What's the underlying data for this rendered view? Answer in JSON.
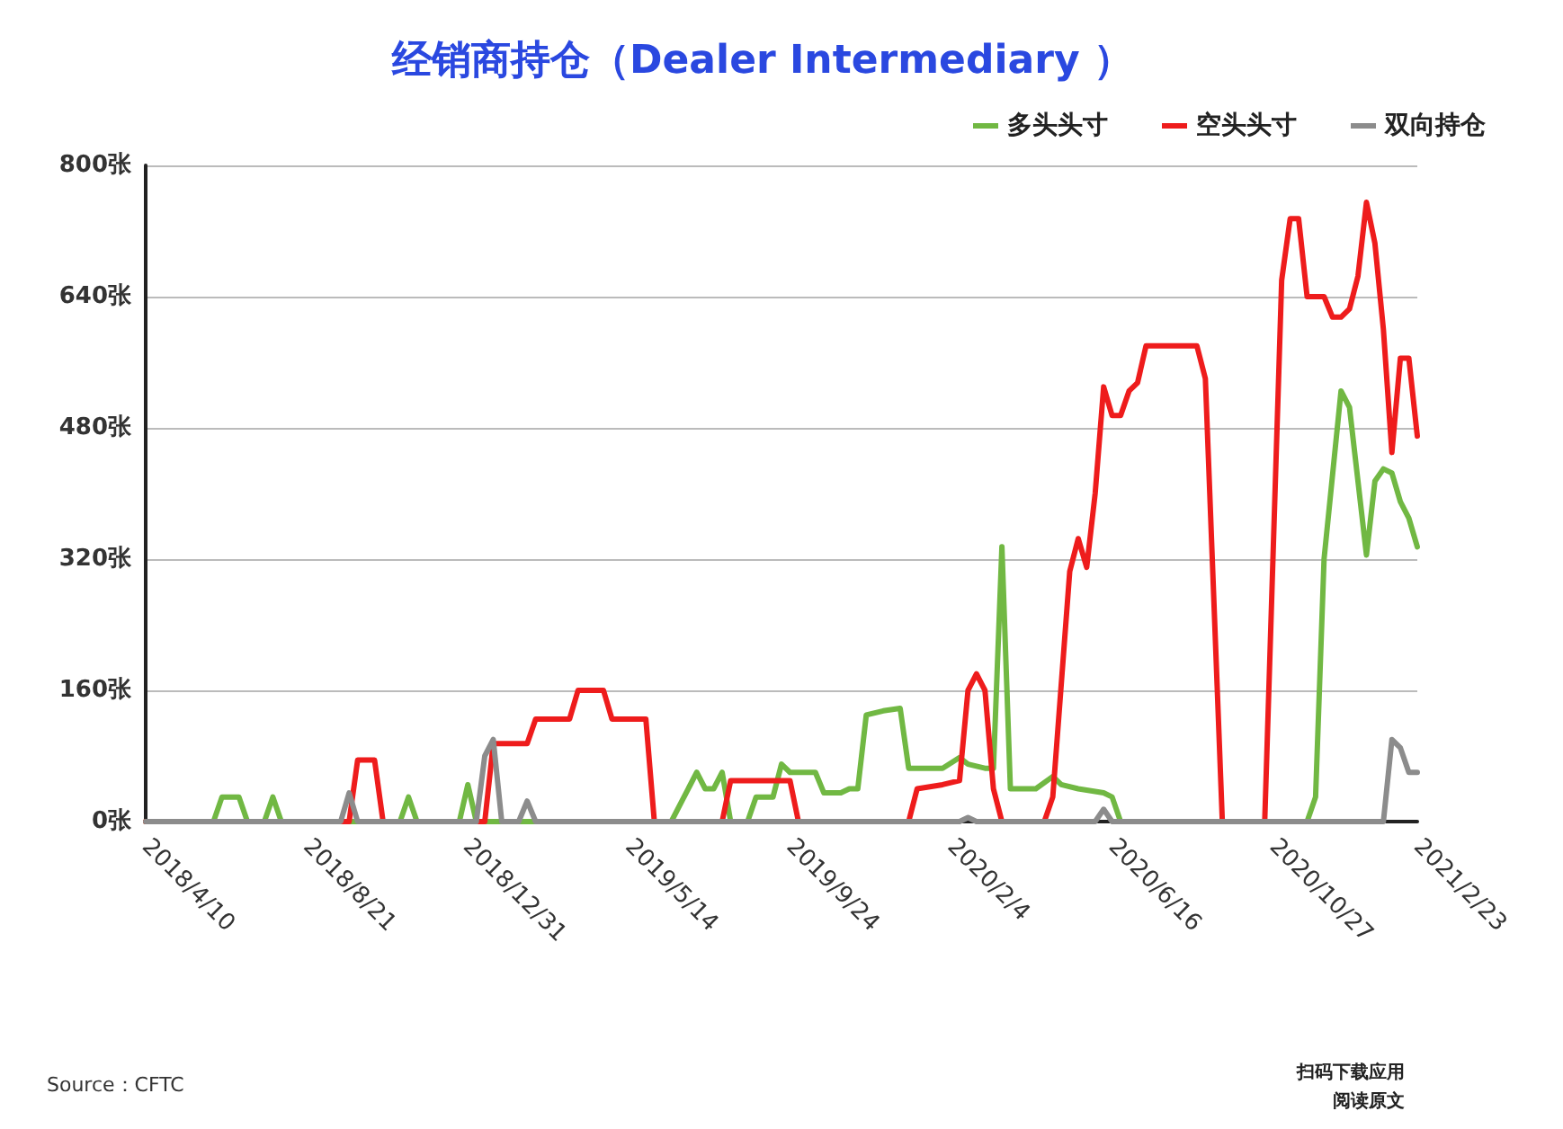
{
  "chart_data": {
    "type": "line",
    "title": "经销商持仓（Dealer Intermediary ）",
    "annotations": [
      "Source：CFTC",
      "扫码下载应用",
      "阅读原文"
    ],
    "xlim": [
      "2018-04-10",
      "2021-02-23"
    ],
    "xticks": [
      {
        "value": "2018-04-10",
        "label": "2018/4/10"
      },
      {
        "value": "2018-08-21",
        "label": "2018/8/21"
      },
      {
        "value": "2018-12-31",
        "label": "2018/12/31"
      },
      {
        "value": "2019-05-14",
        "label": "2019/5/14"
      },
      {
        "value": "2019-09-24",
        "label": "2019/9/24"
      },
      {
        "value": "2020-02-04",
        "label": "2020/2/4"
      },
      {
        "value": "2020-06-16",
        "label": "2020/6/16"
      },
      {
        "value": "2020-10-27",
        "label": "2020/10/27"
      },
      {
        "value": "2021-02-23",
        "label": "2021/2/23"
      }
    ],
    "ylim": [
      0,
      800
    ],
    "yticks": [
      {
        "value": 0,
        "label": "0张"
      },
      {
        "value": 160,
        "label": "160张"
      },
      {
        "value": 320,
        "label": "320张"
      },
      {
        "value": 480,
        "label": "480张"
      },
      {
        "value": 640,
        "label": "640张"
      },
      {
        "value": 800,
        "label": "800张"
      }
    ],
    "grid": "y",
    "legend": "top right",
    "marker": "none",
    "line_style": "solid",
    "series": [
      {
        "name": "多头头寸",
        "color": "#71b843",
        "x": [
          "2018-04-10",
          "2018-06-05",
          "2018-06-12",
          "2018-06-26",
          "2018-07-03",
          "2018-07-17",
          "2018-07-24",
          "2018-07-31",
          "2018-11-06",
          "2018-11-13",
          "2018-11-20",
          "2018-12-25",
          "2019-01-01",
          "2019-01-08",
          "2019-06-18",
          "2019-07-09",
          "2019-07-16",
          "2019-07-23",
          "2019-07-30",
          "2019-08-06",
          "2019-08-20",
          "2019-08-27",
          "2019-09-10",
          "2019-09-17",
          "2019-09-24",
          "2019-10-15",
          "2019-10-22",
          "2019-11-05",
          "2019-11-12",
          "2019-11-19",
          "2019-11-26",
          "2019-12-10",
          "2019-12-24",
          "2019-12-31",
          "2020-01-28",
          "2020-02-11",
          "2020-02-18",
          "2020-03-03",
          "2020-03-10",
          "2020-03-17",
          "2020-03-24",
          "2020-04-14",
          "2020-04-28",
          "2020-05-05",
          "2020-05-19",
          "2020-06-09",
          "2020-06-16",
          "2020-06-23",
          "2020-11-24",
          "2020-12-01",
          "2020-12-08",
          "2020-12-22",
          "2020-12-29",
          "2021-01-12",
          "2021-01-19",
          "2021-01-26",
          "2021-02-02",
          "2021-02-09",
          "2021-02-16",
          "2021-02-23"
        ],
        "values": [
          0,
          0,
          30,
          30,
          0,
          0,
          30,
          0,
          0,
          30,
          0,
          0,
          45,
          0,
          0,
          60,
          40,
          40,
          60,
          0,
          0,
          30,
          30,
          70,
          60,
          60,
          35,
          35,
          40,
          40,
          130,
          135,
          138,
          65,
          65,
          78,
          70,
          65,
          65,
          335,
          40,
          40,
          55,
          45,
          40,
          35,
          30,
          0,
          0,
          30,
          320,
          525,
          505,
          325,
          415,
          430,
          425,
          390,
          370,
          335
        ]
      },
      {
        "name": "空头头寸",
        "color": "#ee1c1c",
        "x": [
          "2018-04-10",
          "2018-09-25",
          "2018-10-02",
          "2018-10-16",
          "2018-10-23",
          "2019-01-15",
          "2019-01-22",
          "2019-02-19",
          "2019-02-26",
          "2019-03-26",
          "2019-04-02",
          "2019-04-23",
          "2019-04-30",
          "2019-05-28",
          "2019-06-04",
          "2019-07-30",
          "2019-08-06",
          "2019-09-24",
          "2019-10-01",
          "2019-12-31",
          "2020-01-07",
          "2020-01-28",
          "2020-02-11",
          "2020-02-18",
          "2020-02-25",
          "2020-03-03",
          "2020-03-10",
          "2020-03-17",
          "2020-04-21",
          "2020-04-28",
          "2020-05-12",
          "2020-05-19",
          "2020-05-26",
          "2020-06-02",
          "2020-06-09",
          "2020-06-16",
          "2020-06-23",
          "2020-06-30",
          "2020-07-07",
          "2020-07-14",
          "2020-08-25",
          "2020-09-01",
          "2020-09-15",
          "2020-10-20",
          "2020-11-03",
          "2020-11-10",
          "2020-11-17",
          "2020-11-24",
          "2020-12-08",
          "2020-12-15",
          "2020-12-22",
          "2020-12-29",
          "2021-01-05",
          "2021-01-12",
          "2021-01-19",
          "2021-01-26",
          "2021-02-02",
          "2021-02-09",
          "2021-02-16",
          "2021-02-23"
        ],
        "values": [
          0,
          0,
          75,
          75,
          0,
          0,
          95,
          95,
          125,
          125,
          160,
          160,
          125,
          125,
          0,
          0,
          50,
          50,
          0,
          0,
          40,
          45,
          50,
          160,
          180,
          160,
          40,
          0,
          0,
          30,
          305,
          345,
          310,
          400,
          530,
          495,
          495,
          525,
          535,
          580,
          580,
          540,
          0,
          0,
          660,
          735,
          735,
          640,
          640,
          615,
          615,
          625,
          665,
          755,
          705,
          600,
          450,
          565,
          565,
          470
        ]
      },
      {
        "name": "双向持仓",
        "color": "#8c8c8c",
        "x": [
          "2018-04-10",
          "2018-09-18",
          "2018-09-25",
          "2018-10-02",
          "2019-01-08",
          "2019-01-15",
          "2019-01-22",
          "2019-01-29",
          "2019-02-12",
          "2019-02-19",
          "2019-02-26",
          "2020-02-11",
          "2020-02-18",
          "2020-02-25",
          "2020-06-02",
          "2020-06-09",
          "2020-06-16",
          "2021-01-26",
          "2021-02-02",
          "2021-02-09",
          "2021-02-16",
          "2021-02-23"
        ],
        "values": [
          0,
          0,
          35,
          0,
          0,
          80,
          100,
          0,
          0,
          25,
          0,
          0,
          5,
          0,
          0,
          15,
          0,
          0,
          100,
          90,
          60,
          60
        ]
      }
    ]
  }
}
